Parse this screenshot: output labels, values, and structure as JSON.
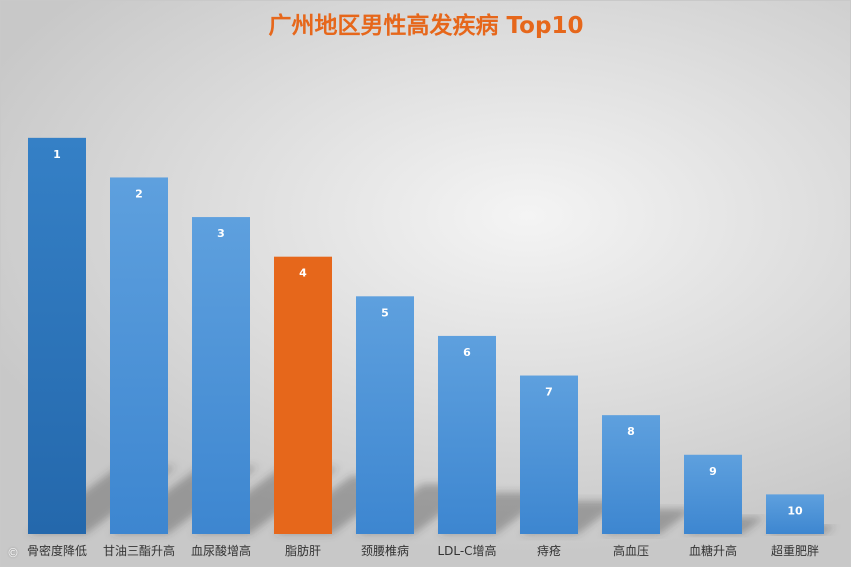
{
  "chart_data": {
    "type": "bar",
    "title": "广州地区男性高发疾病 Top10",
    "categories": [
      "骨密度降低",
      "甘油三酯升高",
      "血尿酸增高",
      "脂肪肝",
      "颈腰椎病",
      "LDL-C增高",
      "痔疮",
      "高血压",
      "血糖升高",
      "超重肥胖"
    ],
    "values": [
      10,
      9,
      8,
      7,
      6,
      5,
      4,
      3,
      2,
      1
    ],
    "data_labels": [
      "1",
      "2",
      "3",
      "4",
      "5",
      "6",
      "7",
      "8",
      "9",
      "10"
    ],
    "highlight_index": 3,
    "ylim": [
      0,
      10.2
    ],
    "grid": false,
    "legend": "none",
    "colors": {
      "bar": "#4f93d6",
      "bar_top": "#2d74b8",
      "highlight": "#e6671b",
      "title": "#e6671b",
      "tick_text": "#333333"
    }
  }
}
